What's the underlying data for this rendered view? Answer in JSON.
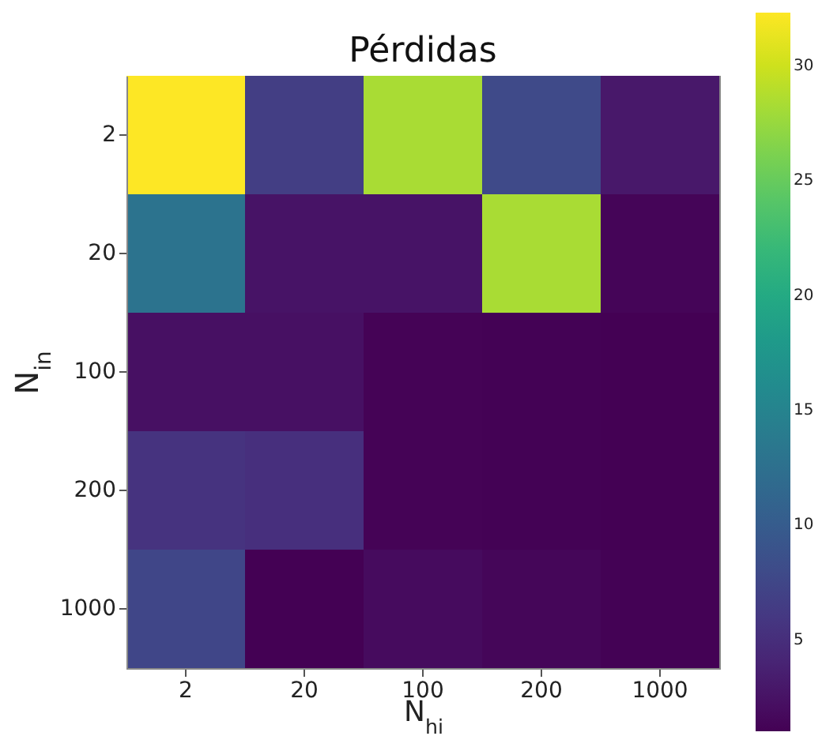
{
  "chart_data": {
    "type": "heatmap",
    "title": "Pérdidas",
    "xlabel": "N$_{hi}$",
    "ylabel": "N$_{in}$",
    "categories": [
      "2",
      "20",
      "100",
      "200",
      "1000"
    ],
    "y_categories": [
      "2",
      "20",
      "100",
      "200",
      "1000"
    ],
    "cells": [
      [
        32.3,
        6.6,
        28.3,
        7.9,
        2.9
      ],
      [
        12.9,
        2.5,
        2.5,
        28.3,
        1.3
      ],
      [
        2.2,
        2.2,
        1.2,
        1.1,
        1.0
      ],
      [
        5.6,
        5.2,
        1.2,
        1.1,
        1.0
      ],
      [
        7.5,
        1.0,
        1.8,
        1.4,
        1.1
      ]
    ],
    "clim": [
      1,
      32.3
    ],
    "cticks": [
      5,
      10,
      15,
      20,
      25,
      30
    ]
  }
}
